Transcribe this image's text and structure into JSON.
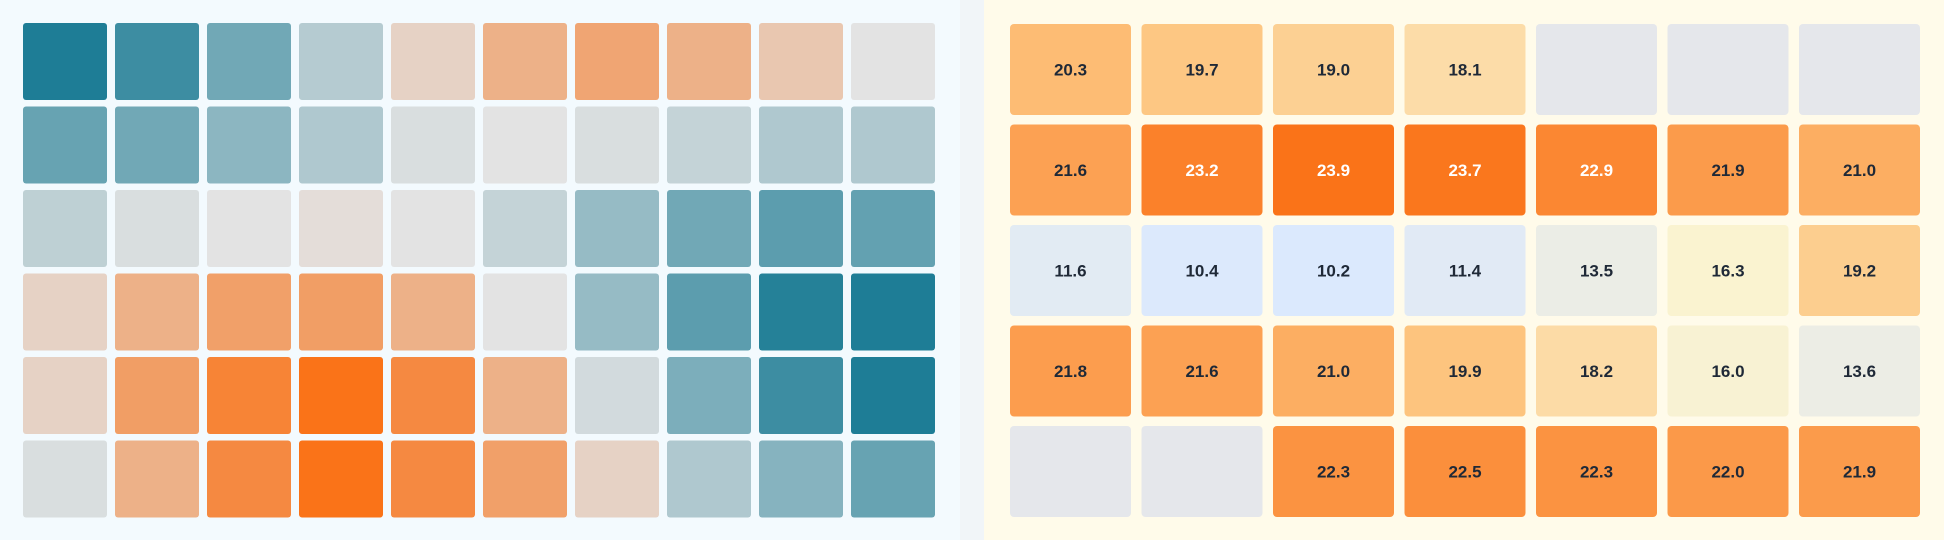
{
  "chart_data": [
    {
      "type": "heatmap",
      "title": "",
      "xlabel": "",
      "ylabel": "",
      "rows": 6,
      "cols": 10,
      "scale": "diverging: -1 (teal) to +1 (orange)",
      "values": [
        [
          -0.95,
          -0.8,
          -0.55,
          -0.22,
          0.15,
          0.45,
          0.55,
          0.45,
          0.25,
          0.0
        ],
        [
          -0.6,
          -0.55,
          -0.42,
          -0.25,
          -0.05,
          0.0,
          -0.05,
          -0.15,
          -0.25,
          -0.25
        ],
        [
          -0.18,
          -0.05,
          0.0,
          0.05,
          0.0,
          -0.15,
          -0.37,
          -0.55,
          -0.65,
          -0.62
        ],
        [
          0.15,
          0.45,
          0.6,
          0.62,
          0.45,
          0.0,
          -0.37,
          -0.65,
          -0.92,
          -0.95
        ],
        [
          0.15,
          0.62,
          0.85,
          1.0,
          0.8,
          0.45,
          -0.08,
          -0.5,
          -0.8,
          -0.95
        ],
        [
          -0.05,
          0.45,
          0.8,
          1.0,
          0.8,
          0.6,
          0.15,
          -0.25,
          -0.45,
          -0.6
        ]
      ],
      "palette": {
        "negative": "#147892",
        "neutral": "#e3e3e3",
        "positive": "#fa7318",
        "background": "#f3fafe"
      }
    },
    {
      "type": "heatmap",
      "title": "",
      "xlabel": "",
      "ylabel": "",
      "rows": 5,
      "cols": 7,
      "labels_shown": true,
      "values": [
        [
          20.3,
          19.7,
          19.0,
          18.1,
          null,
          null,
          null
        ],
        [
          21.6,
          23.2,
          23.9,
          23.7,
          22.9,
          21.9,
          21.0
        ],
        [
          11.6,
          10.4,
          10.2,
          11.4,
          13.5,
          16.3,
          19.2
        ],
        [
          21.8,
          21.6,
          21.0,
          19.9,
          18.2,
          16.0,
          13.6
        ],
        [
          null,
          null,
          22.3,
          22.5,
          22.3,
          22.0,
          21.9
        ]
      ],
      "value_range": [
        10.2,
        23.9
      ],
      "palette": {
        "low": "#dbe9fd",
        "mid_low": "#ecede5",
        "mid": "#faf3d0",
        "mid_high": "#fdc681",
        "high": "#fa7318",
        "missing": "#e5e7eb",
        "background": "#fffbea",
        "text_dark": "#1f2937",
        "text_light": "#ffffff"
      }
    }
  ]
}
